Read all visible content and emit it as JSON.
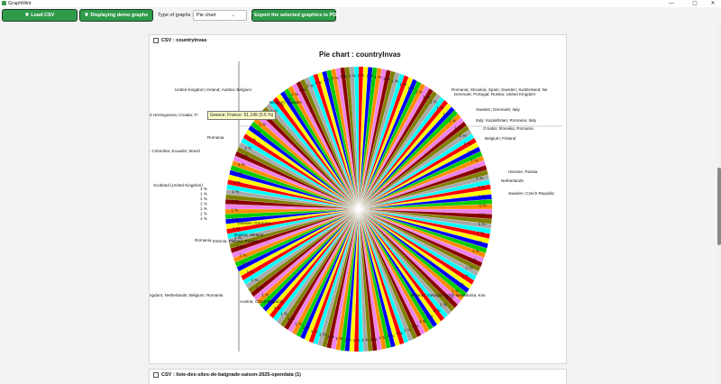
{
  "window": {
    "title": "GraphMint",
    "controls": {
      "minimize": "—",
      "maximize": "▢",
      "close": "✕"
    }
  },
  "toolbar": {
    "load_csv_label": "Load CSV",
    "demo_label": "Displaying demo graphs",
    "type_label": "Type of graphs :",
    "type_select_value": "Pie chart",
    "export_label": "Export the selected graphics to PDF",
    "leaf_icon": "leaf-icon"
  },
  "panels": {
    "first_title": "CSV : countryInvas",
    "second_title": "CSV : liste-des-sites-de-baignade-saison-2025-opendata (1)"
  },
  "tooltip": "Greece; France: 51,149 (0.5 %)",
  "chart_data": {
    "type": "pie",
    "title": "Pie chart : countryInvas",
    "slice_count": 180,
    "palette": [
      "#ff0000",
      "#ffff00",
      "#0000ff",
      "#00cc00",
      "#ff8c00",
      "#ee82ee",
      "#8b0000",
      "#808000",
      "#a9a9a9",
      "#00ffff"
    ],
    "small_slice_label": "1 %",
    "visible_labels": [
      "United Kingdom; Ireland; Austria; Belgium",
      "Romania; Slovakia; Spain; Sweden; Switzerland; Ne",
      "Denmark; Portugal; Russia; United Kingdom",
      "Belgium; Sweden",
      "Sweden; Denmark; Italy",
      "d Herzegovina; Croatia; Fr",
      "Italy; Kazakhstan; Romania; Italy",
      "Croatia; Slovakia; Romania",
      "Romania",
      "Belgium; Finland",
      ": Colombia; Ecuador; Brazil",
      "Ukraine; Russia",
      "Netherlands",
      "Scotland (United Kingdom)",
      "Sweden; Czech Republic",
      "Sweden; Germany",
      "Estonia; Finland; Russia",
      "Romania",
      "Russia; Ukraine",
      "ngdom; Netherlands; Belgium; Romania",
      "Belarus; Georgia; North Macedonia; Kos",
      "Austria; Czech Republic"
    ]
  }
}
